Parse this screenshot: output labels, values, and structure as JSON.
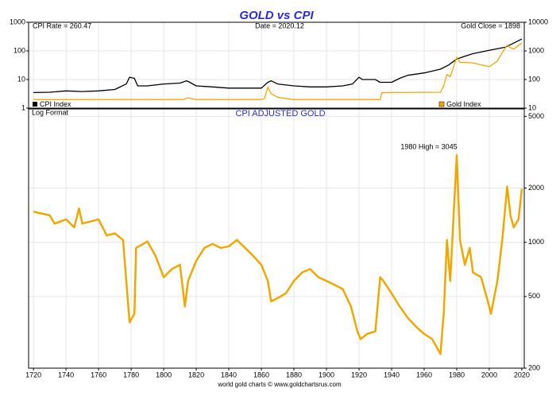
{
  "chart_data": [
    {
      "type": "line",
      "title": "GOLD vs CPI",
      "annotations": [
        "CPI Rate = 260.47",
        "Date = 2020.12",
        "Gold Close = 1898"
      ],
      "xlim": [
        1717,
        2021.5
      ],
      "ylim": [
        1,
        1000
      ],
      "yticks": [
        1,
        10,
        100,
        1000
      ],
      "log_y": true,
      "y2lim": [
        10,
        10000
      ],
      "y2ticks": [
        10,
        100,
        1000,
        10000
      ],
      "log_y2": true,
      "grid": true,
      "series": [
        {
          "name": "CPI Index",
          "color": "#000000",
          "axis": "y",
          "x": [
            1720,
            1730,
            1740,
            1750,
            1760,
            1770,
            1777,
            1779,
            1782,
            1784,
            1790,
            1800,
            1810,
            1814,
            1816,
            1820,
            1830,
            1840,
            1850,
            1860,
            1864,
            1866,
            1870,
            1880,
            1890,
            1900,
            1910,
            1916,
            1920,
            1922,
            1930,
            1933,
            1940,
            1945,
            1950,
            1960,
            1970,
            1975,
            1980,
            1985,
            1990,
            2000,
            2010,
            2020
          ],
          "values": [
            3.5,
            3.6,
            4,
            3.8,
            4,
            4.5,
            7,
            12,
            11,
            6,
            6,
            7,
            7.5,
            9,
            8,
            6,
            5.5,
            5,
            5,
            5,
            8,
            9,
            7,
            6,
            5.5,
            5.5,
            6,
            7,
            12,
            10,
            10,
            8,
            8,
            11,
            14,
            17,
            23,
            32,
            52,
            65,
            80,
            105,
            135,
            260
          ]
        },
        {
          "name": "Gold Index",
          "color": "#f0a800",
          "axis": "y2",
          "x": [
            1720,
            1760,
            1800,
            1812,
            1815,
            1820,
            1860,
            1862,
            1864,
            1866,
            1870,
            1880,
            1930,
            1933,
            1934,
            1970,
            1972,
            1974,
            1976,
            1980,
            1982,
            1990,
            2000,
            2005,
            2008,
            2011,
            2013,
            2015,
            2020
          ],
          "values": [
            20,
            20,
            20,
            20,
            23,
            20,
            20,
            22,
            55,
            32,
            24,
            20,
            20,
            20,
            35,
            36,
            60,
            150,
            125,
            600,
            400,
            380,
            280,
            440,
            870,
            1600,
            1300,
            1150,
            1898
          ]
        }
      ]
    },
    {
      "type": "line",
      "title": "CPI ADJUSTED GOLD",
      "subtitle": "Log Format",
      "annotation": "1980 High = 3045",
      "source": "world gold charts © www.goldchartsrus.com",
      "xlim": [
        1717,
        2021.5
      ],
      "xticks": [
        1720,
        1740,
        1760,
        1780,
        1800,
        1820,
        1840,
        1860,
        1880,
        1900,
        1920,
        1940,
        1960,
        1980,
        2000,
        2020
      ],
      "ylim": [
        200,
        5500
      ],
      "yticks": [
        200,
        500,
        1000,
        2000,
        5000
      ],
      "log_y": true,
      "grid": true,
      "series": [
        {
          "name": "CPI Adjusted Gold",
          "color": "#f0a800",
          "x": [
            1720,
            1730,
            1733,
            1740,
            1745,
            1748,
            1750,
            1760,
            1765,
            1770,
            1775,
            1777,
            1779,
            1782,
            1783,
            1790,
            1795,
            1800,
            1805,
            1810,
            1813,
            1815,
            1820,
            1825,
            1830,
            1835,
            1840,
            1845,
            1850,
            1855,
            1860,
            1864,
            1866,
            1870,
            1875,
            1880,
            1885,
            1890,
            1895,
            1900,
            1905,
            1910,
            1915,
            1919,
            1921,
            1925,
            1930,
            1933,
            1935,
            1940,
            1945,
            1950,
            1955,
            1960,
            1965,
            1970,
            1972,
            1974,
            1976,
            1980,
            1982,
            1985,
            1988,
            1990,
            1995,
            2000,
            2001,
            2005,
            2008,
            2011,
            2013,
            2015,
            2018,
            2020
          ],
          "values": [
            1480,
            1410,
            1270,
            1340,
            1210,
            1540,
            1270,
            1340,
            1090,
            1120,
            1030,
            610,
            360,
            400,
            930,
            1010,
            840,
            640,
            710,
            750,
            440,
            610,
            790,
            930,
            980,
            930,
            950,
            1030,
            930,
            840,
            750,
            610,
            470,
            490,
            520,
            610,
            680,
            710,
            640,
            610,
            580,
            550,
            440,
            320,
            290,
            310,
            320,
            640,
            610,
            520,
            440,
            380,
            340,
            310,
            290,
            240,
            400,
            1030,
            610,
            3045,
            1030,
            750,
            930,
            680,
            640,
            440,
            400,
            610,
            1030,
            2040,
            1410,
            1210,
            1340,
            1980
          ]
        }
      ]
    }
  ]
}
